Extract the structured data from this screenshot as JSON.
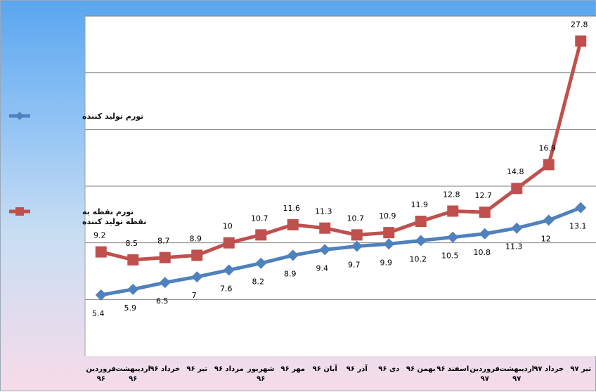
{
  "chart_data": {
    "type": "line",
    "categories": [
      [
        "فروردین",
        "۹۶"
      ],
      [
        "اردیبهشت",
        "۹۶"
      ],
      [
        "خرداد ۹۶"
      ],
      [
        "تیر ۹۶"
      ],
      [
        "مرداد ۹۶"
      ],
      [
        "شهریور",
        "۹۶"
      ],
      [
        "مهر ۹۶"
      ],
      [
        "آبان ۹۶"
      ],
      [
        "آذر ۹۶"
      ],
      [
        "دی ۹۶"
      ],
      [
        "بهمن ۹۶"
      ],
      [
        "اسفند ۹۶"
      ],
      [
        "فروردین",
        "۹۷"
      ],
      [
        "اردیبهشت",
        "۹۷"
      ],
      [
        "خرداد ۹۷"
      ],
      [
        "تیر ۹۷"
      ]
    ],
    "series": [
      {
        "name": "تورم تولید کننده",
        "color": "#4f81bd",
        "marker": "diamond",
        "values": [
          5.4,
          5.9,
          6.5,
          7,
          7.6,
          8.2,
          8.9,
          9.4,
          9.7,
          9.9,
          10.2,
          10.5,
          10.8,
          11.3,
          12,
          13.1
        ]
      },
      {
        "name": "تورم نقطه به نقطه تولید کننده",
        "name_lines": [
          "تورم نقطه به",
          "نقطه تولید کننده"
        ],
        "color": "#c0504d",
        "marker": "square",
        "values": [
          9.2,
          8.5,
          8.7,
          8.9,
          10,
          10.7,
          11.6,
          11.3,
          10.7,
          10.9,
          11.9,
          12.8,
          12.7,
          14.8,
          16.9,
          27.8
        ]
      }
    ],
    "ylim": [
      0,
      30
    ],
    "grid": true,
    "legend": "left",
    "xlabel": "",
    "ylabel": "",
    "title": ""
  }
}
